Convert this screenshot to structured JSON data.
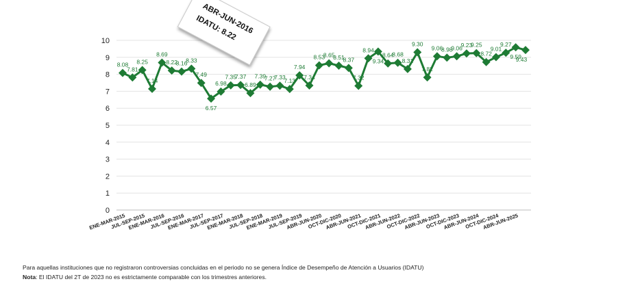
{
  "chart_data": {
    "type": "line",
    "title": "",
    "xlabel": "",
    "ylabel": "",
    "ylim": [
      0,
      10
    ],
    "yticks": [
      0,
      1,
      2,
      3,
      4,
      5,
      6,
      7,
      8,
      9,
      10
    ],
    "series": [
      {
        "name": "IDATU",
        "color": "#1e7b34",
        "values": [
          8.08,
          7.81,
          8.25,
          7.14,
          8.69,
          8.22,
          8.16,
          8.33,
          7.49,
          6.57,
          6.98,
          7.35,
          7.37,
          6.89,
          7.39,
          7.27,
          7.33,
          7.13,
          7.94,
          7.34,
          8.53,
          8.65,
          8.51,
          8.37,
          7.32,
          8.94,
          9.34,
          8.64,
          8.68,
          8.31,
          9.3,
          7.82,
          9.06,
          8.98,
          9.06,
          9.23,
          9.25,
          8.72,
          9.01,
          9.27,
          9.59,
          9.43
        ]
      }
    ],
    "x_tick_labels": [
      "ENE-MAR-2015",
      "JUL-SEP-2015",
      "ENE-MAR-2016",
      "JUL-SEP-2016",
      "ENE-MAR-2017",
      "JUL-SEP-2017",
      "ENE-MAR-2018",
      "JUL-SEP-2018",
      "ENE-MAR-2019",
      "JUL-SEP-2019",
      "ABR-JUN-2020",
      "OCT-DIC-2020",
      "ABR-JUN-2021",
      "OCT-DIC-2021",
      "ABR-JUN-2022",
      "OCT-DIC-2022",
      "ABR-JUN-2023",
      "OCT-DIC-2023",
      "ABR-JUN-2024",
      "OCT-DIC-2024",
      "ABR-JUN-2025"
    ],
    "annotation": {
      "period": "ABR-JUN-2016",
      "label": "IDATU: 8.22"
    }
  },
  "notes": {
    "line1": "Para aquellas instituciones que no registraron controversias concluidas en el periodo no se genera Índice de Desempeño de Atención a Usuarios (IDATU)",
    "nota_label": "Nota",
    "line2": ": El IDATU del 2T de 2023 no es estrictamente comparable con los trimestres anteriores."
  }
}
